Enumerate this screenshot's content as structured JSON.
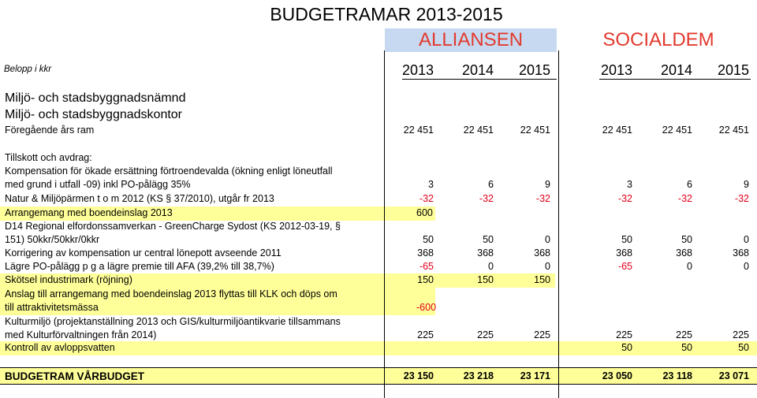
{
  "title": "BUDGETRAMAR 2013-2015",
  "groups": {
    "left": "ALLIANSEN",
    "right": "SOCIALDEM"
  },
  "colors": {
    "highlight": "#ffff99",
    "negative": "#e0001a",
    "header_bg": "#c6d9f1",
    "group_text": "#e23a2e"
  },
  "unit_label": "Belopp i kkr",
  "years": [
    "2013",
    "2014",
    "2015",
    "2013",
    "2014",
    "2015"
  ],
  "section": {
    "line1": "Miljö- och stadsbyggnadsnämnd",
    "line2": "Miljö- och stadsbyggnadskontor"
  },
  "rows": [
    {
      "label": "Föregående års ram",
      "values": [
        "22 451",
        "22 451",
        "22 451",
        "22 451",
        "22 451",
        "22 451"
      ]
    },
    {
      "label": "Tillskott och avdrag:",
      "values": [
        "",
        "",
        "",
        "",
        "",
        ""
      ]
    },
    {
      "label": "Kompensation för ökade ersättning förtroendevalda (ökning enligt löneutfall\nmed grund i utfall -09) inkl PO-pålägg 35%",
      "values": [
        "3",
        "6",
        "9",
        "3",
        "6",
        "9"
      ]
    },
    {
      "label": "Natur & Miljöpärmen t o m 2012 (KS § 37/2010), utgår fr 2013",
      "values": [
        "-32",
        "-32",
        "-32",
        "-32",
        "-32",
        "-32"
      ]
    },
    {
      "label": "Arrangemang med boendeinslag 2013",
      "values": [
        "600",
        "",
        "",
        "",
        "",
        ""
      ]
    },
    {
      "label": "D14 Regional elfordonssamverkan - GreenCharge Sydost (KS 2012-03-19, §\n151) 50kkr/50kkr/0kkr",
      "values": [
        "50",
        "50",
        "0",
        "50",
        "50",
        "0"
      ]
    },
    {
      "label": "Korrigering av kompensation ur central lönepott avseende 2011",
      "values": [
        "368",
        "368",
        "368",
        "368",
        "368",
        "368"
      ]
    },
    {
      "label": "Lägre PO-pålägg p g a lägre premie till AFA (39,2% till 38,7%)",
      "values": [
        "-65",
        "0",
        "0",
        "-65",
        "0",
        "0"
      ]
    },
    {
      "label": "Skötsel industrimark (röjning)",
      "values": [
        "150",
        "150",
        "150",
        "",
        "",
        ""
      ]
    },
    {
      "label": "Anslag till arrangemang med boendeinslag 2013 flyttas till KLK och döps om\ntill attraktivitetsmässa",
      "values": [
        "-600",
        "",
        "",
        "",
        "",
        ""
      ]
    },
    {
      "label": "Kulturmiljö (projektanställning 2013 och GIS/kulturmiljöantikvarie tillsammans\nmed Kulturförvaltningen från 2014)",
      "values": [
        "225",
        "225",
        "225",
        "225",
        "225",
        "225"
      ]
    },
    {
      "label": "Kontroll av avloppsvatten",
      "values": [
        "",
        "",
        "",
        "50",
        "50",
        "50"
      ]
    },
    {
      "label": "BUDGETRAM VÅRBUDGET",
      "values": [
        "23 150",
        "23 218",
        "23 171",
        "23 050",
        "23 118",
        "23 071"
      ]
    }
  ]
}
